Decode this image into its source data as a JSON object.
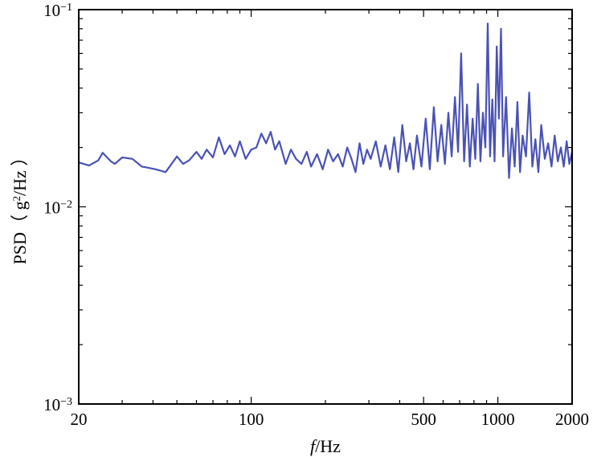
{
  "chart_data": {
    "type": "line",
    "xlabel_italic": "f",
    "xlabel_unit": "/Hz",
    "ylabel_prefix": "PSD（ g",
    "ylabel_sup": "2",
    "ylabel_suffix": "/Hz ）",
    "x_scale": "log",
    "y_scale": "log",
    "xlim": [
      20,
      2000
    ],
    "ylim": [
      0.001,
      0.1
    ],
    "x_ticks": [
      {
        "value": 20,
        "label": "20"
      },
      {
        "value": 100,
        "label": "100"
      },
      {
        "value": 500,
        "label": "500"
      },
      {
        "value": 1000,
        "label": "1000"
      },
      {
        "value": 2000,
        "label": "2000"
      }
    ],
    "y_ticks": [
      {
        "value": 0.001,
        "base": "10",
        "exp": "−3"
      },
      {
        "value": 0.01,
        "base": "10",
        "exp": "−2"
      },
      {
        "value": 0.1,
        "base": "10",
        "exp": "−1"
      }
    ],
    "grid": false,
    "line_color": "#4a52b5",
    "series": [
      {
        "x": [
          20,
          22,
          24,
          25,
          27,
          28,
          30,
          33,
          36,
          38,
          41,
          45,
          50,
          53,
          56,
          60,
          63,
          66,
          70,
          74,
          78,
          82,
          86,
          90,
          95,
          100,
          105,
          110,
          115,
          120,
          125,
          130,
          138,
          145,
          152,
          160,
          168,
          175,
          185,
          195,
          205,
          215,
          225,
          235,
          245,
          255,
          265,
          275,
          285,
          295,
          305,
          320,
          335,
          350,
          365,
          380,
          395,
          410,
          425,
          440,
          455,
          470,
          490,
          510,
          530,
          550,
          570,
          590,
          610,
          630,
          650,
          670,
          690,
          710,
          730,
          750,
          770,
          790,
          810,
          830,
          850,
          870,
          890,
          910,
          930,
          950,
          970,
          990,
          1010,
          1030,
          1050,
          1080,
          1110,
          1140,
          1170,
          1200,
          1230,
          1260,
          1300,
          1340,
          1380,
          1420,
          1460,
          1500,
          1550,
          1600,
          1650,
          1700,
          1750,
          1800,
          1850,
          1900,
          1950,
          2000
        ],
        "y": [
          0.0168,
          0.0162,
          0.0172,
          0.0188,
          0.017,
          0.0165,
          0.0178,
          0.0175,
          0.016,
          0.0158,
          0.0155,
          0.015,
          0.018,
          0.0165,
          0.0172,
          0.019,
          0.0175,
          0.0195,
          0.0178,
          0.0225,
          0.0185,
          0.0205,
          0.018,
          0.0215,
          0.0175,
          0.0195,
          0.02,
          0.0235,
          0.021,
          0.024,
          0.0195,
          0.0215,
          0.0165,
          0.0195,
          0.0175,
          0.0165,
          0.019,
          0.016,
          0.0185,
          0.0155,
          0.0195,
          0.017,
          0.0185,
          0.016,
          0.02,
          0.0175,
          0.015,
          0.021,
          0.0165,
          0.0195,
          0.0175,
          0.0215,
          0.016,
          0.0205,
          0.0155,
          0.0225,
          0.015,
          0.026,
          0.017,
          0.021,
          0.0155,
          0.023,
          0.016,
          0.028,
          0.0155,
          0.032,
          0.017,
          0.026,
          0.0165,
          0.03,
          0.018,
          0.036,
          0.019,
          0.06,
          0.017,
          0.033,
          0.016,
          0.028,
          0.0175,
          0.042,
          0.017,
          0.03,
          0.02,
          0.085,
          0.018,
          0.035,
          0.017,
          0.065,
          0.028,
          0.08,
          0.018,
          0.036,
          0.014,
          0.025,
          0.016,
          0.034,
          0.015,
          0.023,
          0.018,
          0.038,
          0.016,
          0.022,
          0.015,
          0.026,
          0.0175,
          0.021,
          0.016,
          0.023,
          0.017,
          0.02,
          0.016,
          0.0215,
          0.0165,
          0.019
        ]
      }
    ]
  }
}
